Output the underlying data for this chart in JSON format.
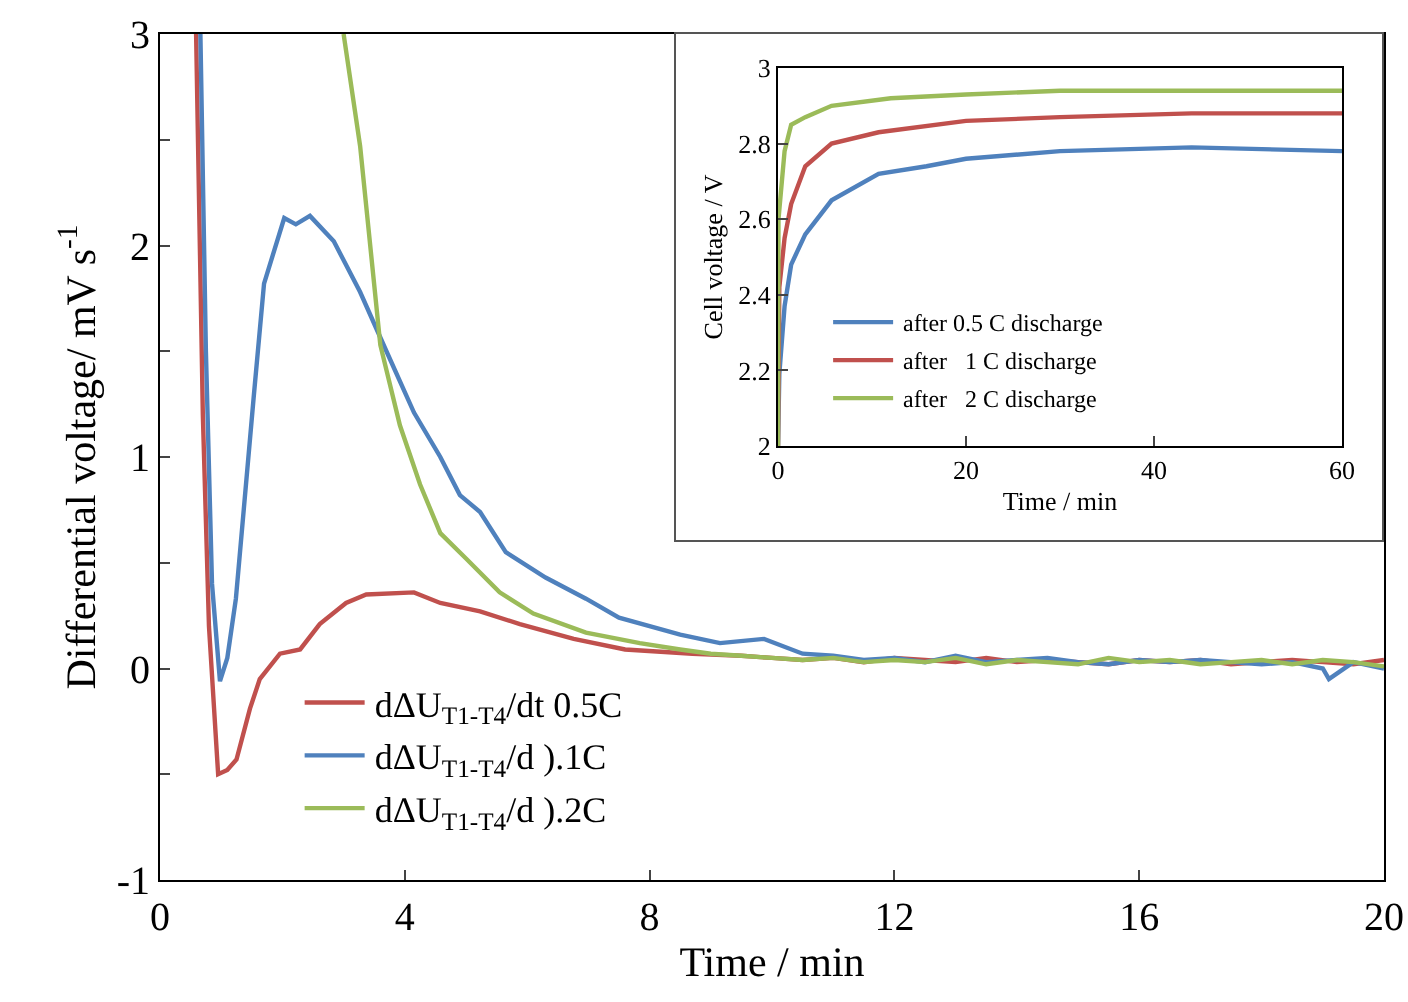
{
  "chart_data": [
    {
      "type": "line",
      "xlabel": "Time / min",
      "ylabel": "Differential voltage/ mV s$^{-1}$",
      "xlim": [
        0,
        20
      ],
      "ylim": [
        -1,
        3
      ],
      "xticks": [
        0,
        4,
        8,
        12,
        16,
        20
      ],
      "yticks": [
        -1,
        {
          "value": -0.5,
          "label": null
        },
        0,
        {
          "value": 0.5,
          "label": null
        },
        1,
        {
          "value": 1.5,
          "label": null
        },
        2,
        {
          "value": 2.5,
          "label": null
        },
        3
      ],
      "legend": "bottom left",
      "series": [
        {
          "name": "dΔU$_{T1-T4}$/dt 0.5C",
          "color": "#c0504d",
          "x": [
            0.59,
            0.7,
            0.8,
            0.95,
            1.1,
            1.25,
            1.47,
            1.63,
            1.96,
            2.29,
            2.61,
            3.04,
            3.37,
            4.15,
            4.58,
            5.23,
            5.88,
            6.76,
            7.6,
            8.7,
            9.5,
            10,
            10.5,
            11,
            11.5,
            12,
            12.5,
            13,
            13.5,
            14,
            14.5,
            15,
            15.5,
            16,
            16.5,
            17,
            17.5,
            18,
            18.5,
            19,
            19.5,
            20
          ],
          "values": [
            3,
            1.2,
            0.2,
            -0.5,
            -0.48,
            -0.43,
            -0.19,
            -0.05,
            0.07,
            0.09,
            0.21,
            0.31,
            0.35,
            0.36,
            0.31,
            0.27,
            0.21,
            0.14,
            0.09,
            0.07,
            0.06,
            0.05,
            0.04,
            0.05,
            0.03,
            0.05,
            0.04,
            0.03,
            0.05,
            0.03,
            0.04,
            0.03,
            0.02,
            0.04,
            0.03,
            0.04,
            0.02,
            0.03,
            0.04,
            0.03,
            0.02,
            0.04
          ]
        },
        {
          "name": "dΔU$_{T1-T4}$/d ).1C",
          "color": "#4f81bd",
          "x": [
            0.66,
            0.75,
            0.85,
            0.98,
            1.1,
            1.24,
            1.53,
            1.7,
            2.03,
            2.22,
            2.45,
            2.84,
            3.27,
            3.7,
            4.15,
            4.58,
            4.9,
            5.23,
            5.65,
            6.3,
            6.96,
            7.5,
            8.5,
            9.15,
            9.87,
            10.5,
            11,
            11.5,
            12,
            12.5,
            13,
            13.5,
            14,
            14.5,
            15,
            15.5,
            16,
            16.5,
            17,
            17.5,
            18,
            18.5,
            19,
            19.1,
            19.5,
            20
          ],
          "values": [
            3,
            1.5,
            0.4,
            -0.06,
            0.05,
            0.33,
            1.28,
            1.82,
            2.13,
            2.1,
            2.14,
            2.02,
            1.78,
            1.5,
            1.21,
            1.0,
            0.82,
            0.74,
            0.55,
            0.43,
            0.33,
            0.24,
            0.16,
            0.12,
            0.14,
            0.07,
            0.06,
            0.04,
            0.05,
            0.03,
            0.06,
            0.03,
            0.04,
            0.05,
            0.03,
            0.02,
            0.04,
            0.03,
            0.04,
            0.03,
            0.02,
            0.03,
            0.0,
            -0.05,
            0.03,
            0.0
          ]
        },
        {
          "name": "dΔU$_{T1-T4}$/d ).2C",
          "color": "#9bbb59",
          "x": [
            3.0,
            3.27,
            3.6,
            3.92,
            4.25,
            4.58,
            5,
            5.55,
            6.1,
            6.96,
            7.84,
            8.5,
            9,
            9.5,
            10,
            10.5,
            11,
            11.5,
            12,
            12.5,
            13,
            13.5,
            14,
            14.5,
            15,
            15.5,
            16,
            16.5,
            17,
            17.5,
            18,
            18.5,
            19,
            19.5,
            20
          ],
          "values": [
            3,
            2.47,
            1.53,
            1.15,
            0.87,
            0.64,
            0.52,
            0.36,
            0.26,
            0.17,
            0.12,
            0.09,
            0.07,
            0.06,
            0.05,
            0.04,
            0.05,
            0.03,
            0.04,
            0.03,
            0.05,
            0.02,
            0.04,
            0.03,
            0.02,
            0.05,
            0.03,
            0.04,
            0.02,
            0.03,
            0.04,
            0.02,
            0.04,
            0.03,
            0.01
          ]
        }
      ]
    },
    {
      "type": "line",
      "xlabel": "Time / min",
      "ylabel": "Cell voltage / V",
      "xlim": [
        0,
        60
      ],
      "ylim": [
        2,
        3
      ],
      "xticks": [
        0,
        20,
        40,
        60
      ],
      "yticks": [
        2,
        2.2,
        2.4,
        2.6,
        2.8,
        3
      ],
      "legend": "bottom left",
      "series": [
        {
          "name": "after 0.5 C discharge",
          "color": "#4f81bd",
          "x": [
            0,
            0.14,
            0.7,
            1.4,
            2.9,
            5.7,
            10.7,
            15.8,
            20,
            30,
            44,
            60
          ],
          "values": [
            2,
            2.19,
            2.37,
            2.48,
            2.56,
            2.65,
            2.72,
            2.74,
            2.76,
            2.78,
            2.79,
            2.78
          ]
        },
        {
          "name": "after   1 C discharge",
          "color": "#c0504d",
          "x": [
            0,
            0.14,
            0.7,
            1.4,
            2.9,
            5.7,
            10.7,
            20,
            30,
            44,
            60
          ],
          "values": [
            2,
            2.42,
            2.55,
            2.64,
            2.74,
            2.8,
            2.83,
            2.86,
            2.87,
            2.88,
            2.88
          ]
        },
        {
          "name": "after   2 C discharge",
          "color": "#9bbb59",
          "x": [
            0,
            0.05,
            0.7,
            1.4,
            2.9,
            5.7,
            12,
            20,
            30,
            60
          ],
          "values": [
            2,
            2.6,
            2.78,
            2.85,
            2.87,
            2.9,
            2.92,
            2.93,
            2.94,
            2.94
          ]
        }
      ]
    }
  ]
}
